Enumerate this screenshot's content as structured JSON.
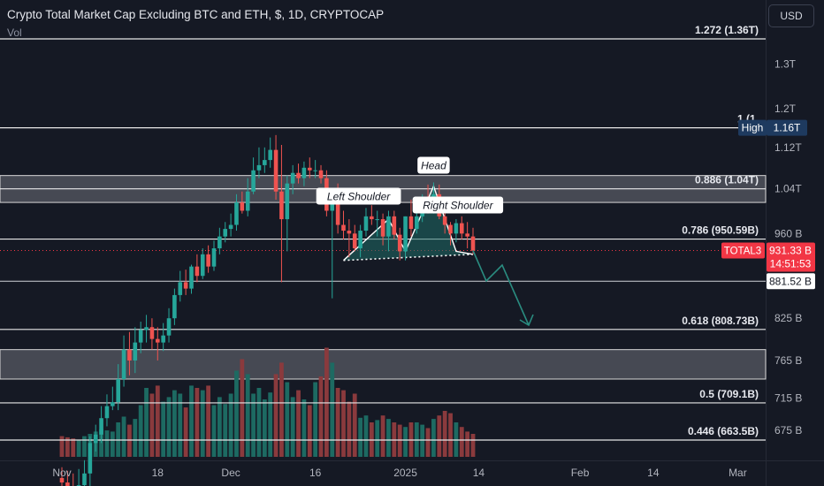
{
  "header": {
    "title": "Crypto Total Market Cap Excluding BTC and ETH, $, 1D, CRYPTOCAP",
    "vol_label": "Vol",
    "currency_button": "USD"
  },
  "colors": {
    "background": "#151924",
    "up": "#26a69a",
    "down": "#ef5350",
    "vol_up": "#1d6a62",
    "vol_down": "#8a3a3d",
    "level_line": "#e8e8e8",
    "zone": "#9598a1",
    "pattern_fill": "#1f6b66",
    "current_price": "#f23645",
    "high_badge": "#1e3a5f",
    "projection": "#2a8c80"
  },
  "chart_data": {
    "type": "candlestick",
    "symbol": "TOTAL3",
    "interval": "1D",
    "y_axis": {
      "scale": "log",
      "range": [
        640,
        1420
      ],
      "ticks": [
        "1.3T",
        "1.2T",
        "1.12T",
        "1.04T",
        "960 B",
        "825 B",
        "765 B",
        "715 B",
        "675 B"
      ],
      "tick_values": [
        1300,
        1200,
        1120,
        1040,
        960,
        825,
        765,
        715,
        675
      ]
    },
    "x_axis": {
      "ticks": [
        "Nov",
        "18",
        "Dec",
        "16",
        "2025",
        "14",
        "Feb",
        "14",
        "Mar"
      ],
      "tick_dates": [
        "2024-11-01",
        "2024-11-18",
        "2024-12-01",
        "2024-12-16",
        "2025-01-01",
        "2025-01-14",
        "2025-02-01",
        "2025-02-14",
        "2025-03-01"
      ]
    },
    "candles": {
      "dates": [
        "2024-11-01",
        "2024-11-02",
        "2024-11-03",
        "2024-11-04",
        "2024-11-05",
        "2024-11-06",
        "2024-11-07",
        "2024-11-08",
        "2024-11-09",
        "2024-11-10",
        "2024-11-11",
        "2024-11-12",
        "2024-11-13",
        "2024-11-14",
        "2024-11-15",
        "2024-11-16",
        "2024-11-17",
        "2024-11-18",
        "2024-11-19",
        "2024-11-20",
        "2024-11-21",
        "2024-11-22",
        "2024-11-23",
        "2024-11-24",
        "2024-11-25",
        "2024-11-26",
        "2024-11-27",
        "2024-11-28",
        "2024-11-29",
        "2024-11-30",
        "2024-12-01",
        "2024-12-02",
        "2024-12-03",
        "2024-12-04",
        "2024-12-05",
        "2024-12-06",
        "2024-12-07",
        "2024-12-08",
        "2024-12-09",
        "2024-12-10",
        "2024-12-11",
        "2024-12-12",
        "2024-12-13",
        "2024-12-14",
        "2024-12-15",
        "2024-12-16",
        "2024-12-17",
        "2024-12-18",
        "2024-12-19",
        "2024-12-20",
        "2024-12-21",
        "2024-12-22",
        "2024-12-23",
        "2024-12-24",
        "2024-12-25",
        "2024-12-26",
        "2024-12-27",
        "2024-12-28",
        "2024-12-29",
        "2024-12-30",
        "2024-12-31",
        "2025-01-01",
        "2025-01-02",
        "2025-01-03",
        "2025-01-04",
        "2025-01-05",
        "2025-01-06",
        "2025-01-07",
        "2025-01-08",
        "2025-01-09",
        "2025-01-10",
        "2025-01-11",
        "2025-01-12",
        "2025-01-13"
      ],
      "open": [
        620,
        615,
        610,
        605,
        612,
        625,
        660,
        670,
        690,
        705,
        710,
        740,
        780,
        765,
        790,
        808,
        812,
        795,
        790,
        800,
        825,
        860,
        880,
        870,
        905,
        890,
        925,
        905,
        935,
        955,
        968,
        975,
        1015,
        1000,
        1035,
        1075,
        1085,
        1095,
        1115,
        1035,
        985,
        1050,
        1070,
        1060,
        1080,
        1075,
        1075,
        1060,
        1000,
        1030,
        975,
        965,
        960,
        935,
        965,
        990,
        985,
        985,
        955,
        990,
        958,
        930,
        990,
        968,
        990,
        1010,
        1000,
        1030,
        990,
        975,
        960,
        978,
        960,
        955
      ],
      "high": [
        632,
        628,
        625,
        630,
        640,
        668,
        682,
        705,
        720,
        730,
        760,
        800,
        805,
        812,
        820,
        830,
        825,
        812,
        818,
        840,
        870,
        898,
        900,
        908,
        925,
        935,
        940,
        948,
        970,
        980,
        995,
        1030,
        1035,
        1060,
        1100,
        1120,
        1120,
        1140,
        1145,
        1125,
        1065,
        1085,
        1088,
        1092,
        1100,
        1095,
        1085,
        1075,
        1040,
        1050,
        1000,
        985,
        975,
        975,
        1005,
        1010,
        1000,
        995,
        1000,
        1000,
        970,
        990,
        1020,
        1015,
        1030,
        1048,
        1052,
        1048,
        1025,
        980,
        985,
        990,
        980,
        970
      ],
      "low": [
        600,
        598,
        596,
        594,
        600,
        610,
        650,
        660,
        680,
        700,
        700,
        730,
        745,
        748,
        775,
        790,
        780,
        765,
        778,
        790,
        815,
        850,
        860,
        862,
        880,
        885,
        895,
        898,
        925,
        945,
        955,
        965,
        995,
        990,
        1030,
        1060,
        1070,
        1080,
        1020,
        880,
        930,
        1030,
        1050,
        1045,
        1060,
        1060,
        1050,
        990,
        855,
        960,
        950,
        920,
        930,
        920,
        955,
        975,
        955,
        940,
        930,
        950,
        915,
        915,
        955,
        960,
        980,
        995,
        995,
        985,
        960,
        940,
        945,
        950,
        935,
        925
      ],
      "close": [
        615,
        610,
        605,
        612,
        625,
        660,
        670,
        690,
        705,
        710,
        740,
        780,
        765,
        790,
        808,
        812,
        795,
        790,
        800,
        825,
        860,
        880,
        870,
        905,
        890,
        925,
        905,
        935,
        955,
        968,
        975,
        1015,
        1000,
        1035,
        1075,
        1085,
        1095,
        1115,
        1035,
        985,
        1050,
        1070,
        1060,
        1080,
        1075,
        1075,
        1060,
        1000,
        1030,
        975,
        965,
        960,
        935,
        965,
        990,
        985,
        985,
        955,
        990,
        958,
        930,
        990,
        968,
        990,
        1010,
        1000,
        1030,
        990,
        975,
        960,
        978,
        960,
        955,
        931
      ]
    },
    "volume_relative": [
      0.18,
      0.17,
      0.16,
      0.15,
      0.18,
      0.2,
      0.22,
      0.24,
      0.23,
      0.22,
      0.3,
      0.35,
      0.28,
      0.33,
      0.45,
      0.6,
      0.55,
      0.62,
      0.48,
      0.52,
      0.58,
      0.55,
      0.43,
      0.62,
      0.6,
      0.58,
      0.62,
      0.45,
      0.52,
      0.46,
      0.55,
      0.75,
      0.85,
      0.72,
      0.55,
      0.6,
      0.5,
      0.56,
      0.72,
      0.82,
      0.65,
      0.52,
      0.58,
      0.5,
      0.45,
      0.65,
      0.7,
      0.95,
      0.82,
      0.6,
      0.58,
      0.48,
      0.55,
      0.34,
      0.36,
      0.3,
      0.32,
      0.36,
      0.33,
      0.3,
      0.28,
      0.26,
      0.3,
      0.3,
      0.28,
      0.25,
      0.33,
      0.36,
      0.4,
      0.38,
      0.3,
      0.26,
      0.22,
      0.2
    ],
    "levels": [
      {
        "label": "1.272 (1.36T)",
        "value": 1360
      },
      {
        "label": "1 (1.",
        "value": 1160
      },
      {
        "label": "0.886 (1.04T)",
        "value": 1040
      },
      {
        "label": "0.786 (950.59B)",
        "value": 950.59
      },
      {
        "label": "0.618 (808.73B)",
        "value": 808.73
      },
      {
        "label": "0.5 (709.1B)",
        "value": 709.1
      },
      {
        "label": "0.446 (663.5B)",
        "value": 663.5
      }
    ],
    "zones": [
      {
        "from": 1015,
        "to": 1065
      },
      {
        "from": 740,
        "to": 780
      }
    ],
    "annotations": {
      "left_shoulder": "Left Shoulder",
      "head": "Head",
      "right_shoulder": "Right Shoulder"
    },
    "axis_badges": {
      "high_tag": "High",
      "high_value": "1.16T",
      "symbol_tag": "TOTAL3",
      "current_price": "931.33 B",
      "countdown": "14:51:53",
      "level_value": "881.52 B"
    },
    "current_price_value": 931.33,
    "support_level_value": 881.52
  }
}
